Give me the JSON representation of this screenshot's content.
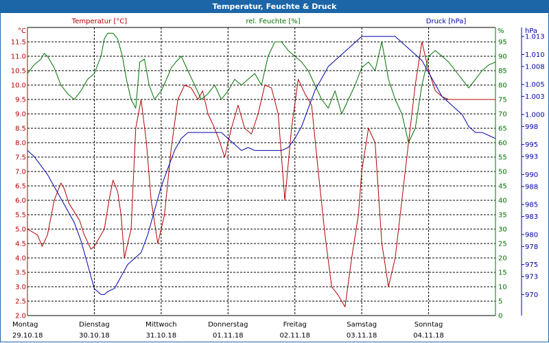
{
  "window": {
    "title": "Temperatur, Feuchte & Druck"
  },
  "colors": {
    "temperature": "#b00000",
    "humidity": "#007000",
    "pressure": "#0000a8",
    "grid": "#000000",
    "titlebar": "#1c66a8"
  },
  "chart_data": {
    "type": "line",
    "title": "Temperatur, Feuchte & Druck",
    "grid": true,
    "axes": {
      "temperature": {
        "label": "Temperatur [°C]",
        "unit": "°C",
        "ylim": [
          2.0,
          12.0
        ],
        "ticks": [
          "2.0",
          "2.5",
          "3.0",
          "3.5",
          "4.0",
          "4.5",
          "5.0",
          "5.5",
          "6.0",
          "6.5",
          "7.0",
          "7.5",
          "8.0",
          "8.5",
          "9.0",
          "9.5",
          "10.0",
          "10.5",
          "11.0",
          "11.5"
        ]
      },
      "humidity": {
        "label": "rel. Feuchte [%]",
        "unit": "%",
        "ylim": [
          0,
          100
        ],
        "ticks": [
          "0",
          "5",
          "10",
          "15",
          "20",
          "25",
          "30",
          "35",
          "40",
          "45",
          "50",
          "55",
          "60",
          "65",
          "70",
          "75",
          "80",
          "85",
          "90",
          "95"
        ]
      },
      "pressure": {
        "label": "Druck [hPa]",
        "unit": "hPa",
        "ylim": [
          966.5,
          1014.5
        ],
        "ticks": [
          {
            "v": 970,
            "t": "970"
          },
          {
            "v": 973,
            "t": "973"
          },
          {
            "v": 975,
            "t": "975"
          },
          {
            "v": 978,
            "t": "978"
          },
          {
            "v": 980,
            "t": "980"
          },
          {
            "v": 983,
            "t": "983"
          },
          {
            "v": 985,
            "t": "985"
          },
          {
            "v": 988,
            "t": "988"
          },
          {
            "v": 990,
            "t": "990"
          },
          {
            "v": 993,
            "t": "993"
          },
          {
            "v": 995,
            "t": "995"
          },
          {
            "v": 998,
            "t": "998"
          },
          {
            "v": 1000,
            "t": "1.000"
          },
          {
            "v": 1003,
            "t": "1.003"
          },
          {
            "v": 1005,
            "t": "1.005"
          },
          {
            "v": 1008,
            "t": "1.008"
          },
          {
            "v": 1010,
            "t": "1.010"
          },
          {
            "v": 1013,
            "t": "1.013"
          }
        ]
      }
    },
    "x_axis": {
      "range_days": [
        0,
        7
      ],
      "days": [
        {
          "name": "Montag",
          "date": "29.10.18"
        },
        {
          "name": "Dienstag",
          "date": "30.10.18"
        },
        {
          "name": "Mittwoch",
          "date": "31.10.18"
        },
        {
          "name": "Donnerstag",
          "date": "01.11.18"
        },
        {
          "name": "Freitag",
          "date": "02.11.18"
        },
        {
          "name": "Samstag",
          "date": "03.11.18"
        },
        {
          "name": "Sonntag",
          "date": "04.11.18"
        }
      ]
    },
    "series": [
      {
        "name": "Temperatur [°C]",
        "axis": "temperature",
        "x": [
          0,
          0.15,
          0.22,
          0.3,
          0.4,
          0.5,
          0.55,
          0.62,
          0.7,
          0.78,
          0.85,
          0.95,
          1.0,
          1.05,
          1.15,
          1.22,
          1.28,
          1.35,
          1.4,
          1.45,
          1.55,
          1.62,
          1.7,
          1.78,
          1.85,
          1.95,
          2.05,
          2.15,
          2.25,
          2.35,
          2.45,
          2.55,
          2.62,
          2.7,
          2.78,
          2.85,
          2.95,
          3.05,
          3.15,
          3.25,
          3.35,
          3.45,
          3.55,
          3.65,
          3.75,
          3.85,
          3.95,
          4.05,
          4.15,
          4.25,
          4.35,
          4.45,
          4.55,
          4.65,
          4.75,
          4.85,
          4.95,
          5.0,
          5.1,
          5.2,
          5.3,
          5.4,
          5.5,
          5.6,
          5.7,
          5.8,
          5.9,
          6.0,
          6.1,
          6.2,
          6.3,
          6.4,
          6.5,
          6.6,
          6.7,
          6.8,
          6.9,
          7.0
        ],
        "values": [
          5.0,
          4.8,
          4.4,
          4.8,
          6.0,
          6.6,
          6.4,
          5.9,
          5.6,
          5.3,
          4.8,
          4.3,
          4.4,
          4.6,
          5.0,
          6.0,
          6.7,
          6.3,
          5.5,
          4.0,
          5.0,
          8.5,
          9.5,
          8.0,
          6.0,
          4.5,
          5.5,
          7.8,
          9.5,
          10.0,
          9.9,
          9.5,
          9.8,
          9.0,
          8.6,
          8.2,
          7.5,
          8.5,
          9.3,
          8.5,
          8.3,
          9.0,
          10.0,
          9.9,
          9.0,
          6.0,
          8.5,
          10.2,
          9.7,
          9.3,
          7.0,
          4.8,
          3.0,
          2.7,
          2.3,
          4.0,
          5.5,
          7.0,
          8.5,
          8.0,
          4.5,
          3.0,
          4.0,
          6.0,
          8.0,
          10.0,
          11.5,
          10.5,
          9.8,
          9.6,
          9.5,
          9.5,
          9.5,
          9.5,
          9.5,
          9.5,
          9.5,
          9.5
        ]
      },
      {
        "name": "rel. Feuchte [%]",
        "axis": "humidity",
        "x": [
          0,
          0.1,
          0.2,
          0.25,
          0.3,
          0.4,
          0.5,
          0.6,
          0.7,
          0.8,
          0.9,
          1.0,
          1.1,
          1.15,
          1.2,
          1.28,
          1.35,
          1.42,
          1.48,
          1.55,
          1.62,
          1.68,
          1.75,
          1.82,
          1.9,
          2.0,
          2.08,
          2.15,
          2.22,
          2.3,
          2.4,
          2.5,
          2.6,
          2.7,
          2.8,
          2.9,
          3.0,
          3.1,
          3.2,
          3.3,
          3.4,
          3.5,
          3.6,
          3.7,
          3.8,
          3.9,
          4.0,
          4.1,
          4.2,
          4.3,
          4.4,
          4.5,
          4.6,
          4.7,
          4.8,
          4.9,
          5.0,
          5.1,
          5.2,
          5.3,
          5.4,
          5.5,
          5.6,
          5.7,
          5.8,
          5.9,
          6.0,
          6.1,
          6.2,
          6.3,
          6.4,
          6.5,
          6.6,
          6.7,
          6.8,
          6.9,
          7.0
        ],
        "values": [
          84,
          87,
          89,
          91,
          90,
          86,
          80,
          77,
          75,
          78,
          82,
          84,
          90,
          96,
          98,
          98,
          96,
          90,
          82,
          75,
          72,
          88,
          89,
          80,
          75,
          78,
          82,
          86,
          88,
          90,
          85,
          80,
          75,
          77,
          80,
          75,
          78,
          82,
          80,
          82,
          84,
          80,
          90,
          95,
          95,
          92,
          90,
          88,
          85,
          80,
          75,
          72,
          78,
          70,
          75,
          80,
          86,
          88,
          85,
          95,
          82,
          75,
          70,
          60,
          65,
          80,
          90,
          92,
          90,
          88,
          85,
          82,
          79,
          82,
          85,
          87,
          88
        ]
      },
      {
        "name": "Druck [hPa]",
        "axis": "pressure",
        "x": [
          0,
          0.1,
          0.2,
          0.3,
          0.4,
          0.5,
          0.6,
          0.7,
          0.8,
          0.9,
          1.0,
          1.05,
          1.1,
          1.15,
          1.2,
          1.3,
          1.4,
          1.5,
          1.6,
          1.7,
          1.8,
          1.9,
          2.0,
          2.1,
          2.2,
          2.3,
          2.4,
          2.5,
          2.6,
          2.7,
          2.8,
          2.9,
          3.0,
          3.1,
          3.2,
          3.3,
          3.4,
          3.5,
          3.6,
          3.7,
          3.8,
          3.9,
          4.0,
          4.1,
          4.2,
          4.3,
          4.4,
          4.5,
          4.6,
          4.7,
          4.8,
          4.9,
          5.0,
          5.1,
          5.2,
          5.3,
          5.4,
          5.5,
          5.6,
          5.7,
          5.8,
          5.9,
          6.0,
          6.1,
          6.2,
          6.3,
          6.4,
          6.5,
          6.6,
          6.7,
          6.8,
          6.9,
          7.0
        ],
        "values": [
          994,
          993,
          991.5,
          990,
          988,
          986,
          984,
          982,
          979,
          975,
          971,
          970.5,
          970,
          970,
          970.5,
          971,
          973,
          975,
          976,
          977,
          980,
          984,
          988,
          991,
          994,
          996,
          997,
          997,
          997,
          997,
          997,
          997,
          996,
          995,
          994,
          994.5,
          994,
          994,
          994,
          994,
          994,
          994.5,
          996,
          998,
          1001,
          1004,
          1006,
          1008,
          1009,
          1010,
          1011,
          1012,
          1013,
          1013,
          1013,
          1013,
          1013,
          1013,
          1012,
          1011,
          1010,
          1009,
          1007,
          1005,
          1003,
          1002,
          1001,
          1000,
          998,
          997,
          997,
          996.5,
          996
        ]
      }
    ]
  }
}
